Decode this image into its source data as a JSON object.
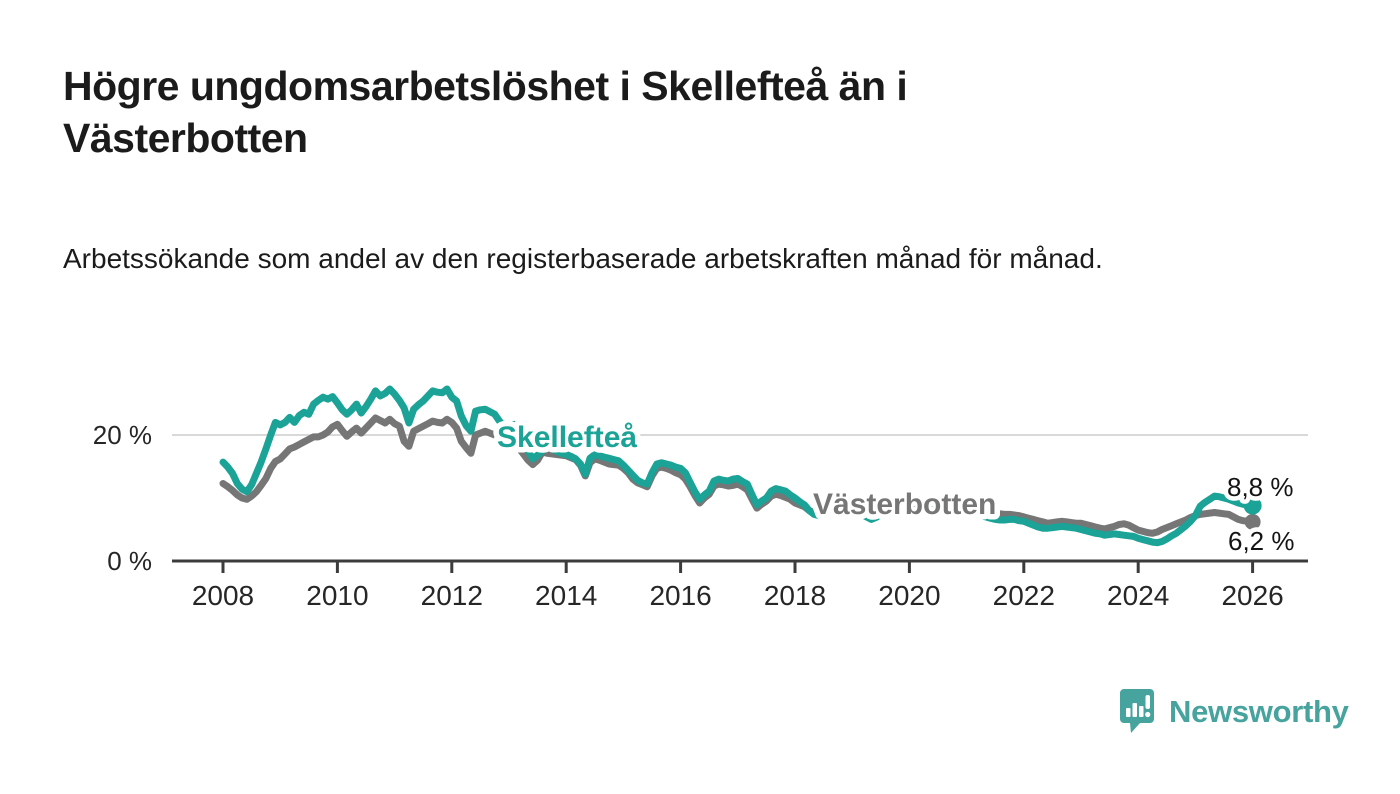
{
  "header": {
    "title": "Högre ungdomsarbetslöshet i Skellefteå än i Västerbotten",
    "subtitle": "Arbetssökande som andel av den registerbaserade arbetskraften månad för månad."
  },
  "chart_data": {
    "type": "line",
    "unit": "%",
    "title": "Högre ungdomsarbetslöshet i Skellefteå än i Västerbotten",
    "x_start_year": 2008,
    "x_step_months": 1,
    "x_axis": {
      "ticks": [
        2008,
        2010,
        2012,
        2014,
        2016,
        2018,
        2020,
        2022,
        2024,
        2026
      ]
    },
    "y_axis": {
      "ticks": [
        {
          "value": 0,
          "label": "0 %"
        },
        {
          "value": 20,
          "label": "20 %"
        }
      ],
      "range": [
        0,
        31
      ]
    },
    "grid": "horizontal line at 20 % only",
    "legend_position": "inline labels on lines",
    "series": [
      {
        "name": "Skellefteå",
        "color": "#1aa396",
        "end_label": "8,8 %",
        "end_value": 8.8,
        "values": [
          15.7,
          14.9,
          13.9,
          12.3,
          11.4,
          11.0,
          12.1,
          13.9,
          15.7,
          17.8,
          20.0,
          22.0,
          21.6,
          22.0,
          22.8,
          22.0,
          23.1,
          23.6,
          23.3,
          24.9,
          25.5,
          26.0,
          25.7,
          26.1,
          25.1,
          24.0,
          23.3,
          24.0,
          24.9,
          23.5,
          24.5,
          25.7,
          27.0,
          26.2,
          26.6,
          27.3,
          26.5,
          25.5,
          24.3,
          21.9,
          24.1,
          24.8,
          25.4,
          26.2,
          27.0,
          26.8,
          26.7,
          27.3,
          26.0,
          25.4,
          23.0,
          21.5,
          20.6,
          23.8,
          24.0,
          24.1,
          23.7,
          23.3,
          22.2,
          21.2,
          20.8,
          21.7,
          20.5,
          19.0,
          17.5,
          16.2,
          16.8,
          17.5,
          18.0,
          17.8,
          17.4,
          17.1,
          16.9,
          16.6,
          16.2,
          15.4,
          13.8,
          16.3,
          16.9,
          16.7,
          16.5,
          16.3,
          16.1,
          15.9,
          15.2,
          14.4,
          13.6,
          12.8,
          12.4,
          12.2,
          14.0,
          15.4,
          15.6,
          15.4,
          15.2,
          14.9,
          14.7,
          14.0,
          12.5,
          11.0,
          9.8,
          10.5,
          11.1,
          12.7,
          13.0,
          12.8,
          12.7,
          13.0,
          13.1,
          12.6,
          12.2,
          10.5,
          8.9,
          9.5,
          10.0,
          11.1,
          11.5,
          11.3,
          11.1,
          10.5,
          10.0,
          9.4,
          8.9,
          8.0,
          7.4,
          7.2,
          7.6,
          8.2,
          8.5,
          8.4,
          8.2,
          8.0,
          7.8,
          7.6,
          7.4,
          7.0,
          6.6,
          6.9,
          7.4,
          7.8,
          8.0,
          7.9,
          7.8,
          7.8,
          7.9,
          8.0,
          8.4,
          9.0,
          9.2,
          9.0,
          8.8,
          8.6,
          8.4,
          8.2,
          8.0,
          7.9,
          7.8,
          7.6,
          7.4,
          7.2,
          7.0,
          6.8,
          6.6,
          6.5,
          6.5,
          6.6,
          6.6,
          6.4,
          6.3,
          6.0,
          5.7,
          5.4,
          5.2,
          5.2,
          5.3,
          5.4,
          5.5,
          5.4,
          5.3,
          5.2,
          5.0,
          4.8,
          4.6,
          4.4,
          4.3,
          4.1,
          4.2,
          4.3,
          4.2,
          4.1,
          4.0,
          3.9,
          3.6,
          3.4,
          3.2,
          3.0,
          2.9,
          3.1,
          3.5,
          4.0,
          4.4,
          5.0,
          5.6,
          6.3,
          7.2,
          8.7,
          9.3,
          9.8,
          10.3,
          10.2,
          10.0,
          9.8,
          9.5,
          9.2,
          9.0,
          8.9,
          8.8
        ]
      },
      {
        "name": "Västerbotten",
        "color": "#767676",
        "end_label": "6,2 %",
        "end_value": 6.2,
        "values": [
          12.3,
          11.8,
          11.2,
          10.5,
          10.0,
          9.8,
          10.3,
          11.0,
          12.0,
          13.1,
          14.7,
          15.8,
          16.2,
          17.0,
          17.8,
          18.1,
          18.5,
          18.9,
          19.3,
          19.7,
          19.7,
          20.0,
          20.5,
          21.3,
          21.7,
          20.7,
          19.8,
          20.5,
          21.1,
          20.3,
          21.1,
          21.9,
          22.7,
          22.3,
          21.9,
          22.5,
          21.8,
          21.4,
          19.0,
          18.2,
          20.6,
          21.0,
          21.4,
          21.8,
          22.2,
          22.0,
          21.9,
          22.5,
          22.0,
          21.1,
          19.0,
          18.0,
          17.1,
          20.0,
          20.3,
          20.6,
          20.3,
          20.0,
          19.3,
          18.5,
          18.1,
          18.9,
          18.0,
          17.0,
          16.0,
          15.3,
          16.0,
          17.3,
          17.1,
          17.0,
          16.9,
          16.8,
          16.7,
          16.4,
          16.1,
          15.2,
          13.5,
          15.6,
          16.2,
          16.0,
          15.7,
          15.4,
          15.3,
          15.2,
          14.7,
          14.0,
          13.0,
          12.4,
          12.1,
          11.8,
          13.5,
          14.7,
          14.9,
          14.7,
          14.4,
          14.0,
          13.7,
          13.0,
          11.8,
          10.4,
          9.2,
          10.0,
          10.6,
          11.9,
          12.2,
          12.1,
          11.9,
          12.0,
          12.2,
          11.8,
          11.3,
          9.8,
          8.4,
          9.0,
          9.5,
          10.3,
          10.6,
          10.4,
          10.1,
          9.8,
          9.2,
          8.9,
          8.6,
          8.0,
          7.7,
          7.5,
          7.8,
          8.3,
          8.6,
          8.5,
          8.4,
          8.2,
          8.0,
          7.9,
          7.7,
          7.4,
          7.2,
          7.4,
          7.8,
          8.1,
          8.2,
          8.1,
          8.0,
          8.0,
          8.1,
          8.2,
          8.6,
          9.3,
          9.5,
          9.4,
          9.2,
          9.0,
          8.8,
          8.6,
          8.4,
          8.3,
          8.2,
          8.1,
          8.0,
          7.9,
          7.8,
          7.7,
          7.6,
          7.5,
          7.4,
          7.4,
          7.3,
          7.2,
          7.0,
          6.8,
          6.6,
          6.4,
          6.2,
          6.0,
          6.1,
          6.2,
          6.3,
          6.2,
          6.1,
          6.0,
          6.0,
          5.8,
          5.6,
          5.4,
          5.2,
          5.1,
          5.3,
          5.5,
          5.8,
          5.9,
          5.7,
          5.3,
          4.9,
          4.7,
          4.5,
          4.4,
          4.6,
          5.0,
          5.3,
          5.6,
          5.9,
          6.2,
          6.5,
          6.9,
          7.2,
          7.4,
          7.5,
          7.6,
          7.7,
          7.6,
          7.5,
          7.4,
          7.0,
          6.6,
          6.4,
          6.3,
          6.2
        ]
      }
    ]
  },
  "footer": {
    "brand": "Newsworthy"
  },
  "colors": {
    "accent_teal": "#1aa396",
    "line_gray": "#767676",
    "axis": "#3c3c3c",
    "grid": "#d9d9d9",
    "logo_teal": "#46a39d",
    "text": "#1b1b1b",
    "background": "#ffffff"
  }
}
